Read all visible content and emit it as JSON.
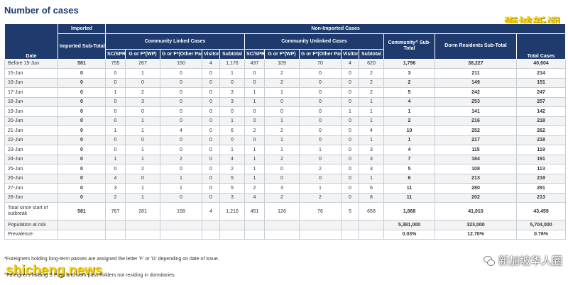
{
  "page": {
    "title": "Number of cases"
  },
  "watermarks": {
    "top_right": "狮城新闻",
    "bottom_left": "shicheng.news",
    "bottom_right": "新加坡华人圈"
  },
  "header": {
    "date": "Date",
    "imported": "Imported",
    "imported_sub_total": "Imported Sub-Total",
    "non_imported": "Non-Imported Cases",
    "community_linked": "Community Linked Cases",
    "community_unlinked": "Community Unlinked Cases",
    "community_sub_total": "Community^ Sub-Total",
    "dorm_sub_total": "Dorm Residents Sub-Total",
    "total_cases": "Total Cases",
    "sub": [
      "SC/SPR",
      "G or F*(WP)",
      "G or F*(Other Pass)",
      "Visitor",
      "Subtotal"
    ]
  },
  "rows": [
    [
      "Before 15-Jun",
      "581",
      "755",
      "267",
      "150",
      "4",
      "1,176",
      "437",
      "109",
      "70",
      "4",
      "620",
      "1,796",
      "38,227",
      "40,604"
    ],
    [
      "15-Jun",
      "0",
      "0",
      "1",
      "0",
      "0",
      "1",
      "0",
      "2",
      "0",
      "0",
      "2",
      "3",
      "211",
      "214"
    ],
    [
      "16-Jun",
      "0",
      "0",
      "0",
      "0",
      "0",
      "0",
      "0",
      "2",
      "0",
      "0",
      "2",
      "2",
      "149",
      "151"
    ],
    [
      "17-Jun",
      "0",
      "1",
      "2",
      "0",
      "0",
      "3",
      "1",
      "1",
      "0",
      "0",
      "2",
      "5",
      "242",
      "247"
    ],
    [
      "18-Jun",
      "0",
      "0",
      "3",
      "0",
      "0",
      "3",
      "1",
      "0",
      "0",
      "0",
      "1",
      "4",
      "253",
      "257"
    ],
    [
      "19-Jun",
      "0",
      "0",
      "0",
      "0",
      "0",
      "0",
      "0",
      "0",
      "0",
      "1",
      "1",
      "1",
      "141",
      "142"
    ],
    [
      "20-Jun",
      "0",
      "0",
      "1",
      "0",
      "0",
      "1",
      "0",
      "1",
      "0",
      "0",
      "1",
      "2",
      "216",
      "218"
    ],
    [
      "21-Jun",
      "0",
      "1",
      "1",
      "4",
      "0",
      "6",
      "2",
      "2",
      "0",
      "0",
      "4",
      "10",
      "252",
      "262"
    ],
    [
      "22-Jun",
      "0",
      "0",
      "0",
      "0",
      "0",
      "0",
      "0",
      "1",
      "0",
      "0",
      "1",
      "1",
      "217",
      "218"
    ],
    [
      "23-Jun",
      "0",
      "0",
      "1",
      "0",
      "0",
      "1",
      "1",
      "1",
      "1",
      "0",
      "3",
      "4",
      "115",
      "119"
    ],
    [
      "24-Jun",
      "0",
      "1",
      "1",
      "2",
      "0",
      "4",
      "1",
      "2",
      "0",
      "0",
      "3",
      "7",
      "184",
      "191"
    ],
    [
      "25-Jun",
      "0",
      "0",
      "2",
      "0",
      "0",
      "2",
      "1",
      "0",
      "2",
      "0",
      "3",
      "5",
      "108",
      "113"
    ],
    [
      "26-Jun",
      "0",
      "4",
      "0",
      "1",
      "0",
      "5",
      "1",
      "0",
      "0",
      "0",
      "1",
      "6",
      "213",
      "219"
    ],
    [
      "27-Jun",
      "0",
      "3",
      "1",
      "1",
      "0",
      "5",
      "2",
      "3",
      "1",
      "0",
      "6",
      "11",
      "280",
      "291"
    ],
    [
      "28-Jun",
      "0",
      "2",
      "1",
      "0",
      "0",
      "3",
      "4",
      "2",
      "2",
      "0",
      "8",
      "11",
      "202",
      "213"
    ]
  ],
  "total_row": [
    "Total since start of outbreak",
    "581",
    "767",
    "281",
    "158",
    "4",
    "1,210",
    "451",
    "126",
    "76",
    "5",
    "658",
    "1,868",
    "41,010",
    "43,459"
  ],
  "population_row": {
    "label": "Population at risk",
    "community": "5,381,000",
    "dorm": "323,000",
    "total": "5,704,000"
  },
  "prevalence_row": {
    "label": "Prevalence",
    "community": "0.03%",
    "dorm": "12.70%",
    "total": "0.76%"
  },
  "footnotes": [
    "*Foreigners holding long-term passes are assigned the letter 'F' or 'G' depending on date of issue.",
    "^Foreigners holding S Pass and work pass holders not residing in dormitories."
  ],
  "colors": {
    "header_bg": "#1f3b6e",
    "watermark": "#f4d21b"
  }
}
